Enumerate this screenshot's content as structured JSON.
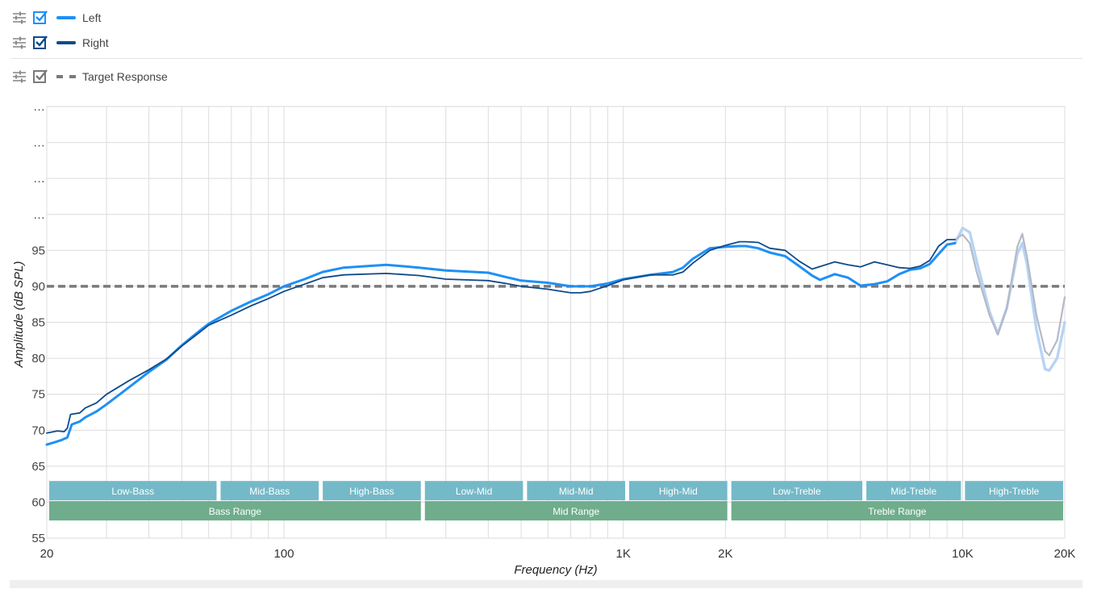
{
  "legend": {
    "items": [
      {
        "label": "Left",
        "color": "#1e90f5",
        "checkbox_color": "#1e90f5",
        "style": "solid"
      },
      {
        "label": "Right",
        "color": "#0f4a8a",
        "checkbox_color": "#0f4a8a",
        "style": "solid"
      },
      {
        "label": "Target Response",
        "color": "#7a7a7a",
        "checkbox_color": "#7a7a7a",
        "style": "dashed"
      }
    ],
    "icons": {
      "adjust": "sliders-icon",
      "check": "checkbox-checked-icon"
    }
  },
  "chart_data": {
    "type": "line",
    "xlabel": "Frequency (Hz)",
    "ylabel": "Amplitude (dB SPL)",
    "x_scale": "log",
    "xlim": [
      20,
      20000
    ],
    "ylim": [
      55,
      115
    ],
    "x_ticks": [
      {
        "value": 20,
        "label": "20"
      },
      {
        "value": 100,
        "label": "100"
      },
      {
        "value": 1000,
        "label": "1K"
      },
      {
        "value": 2000,
        "label": "2K"
      },
      {
        "value": 10000,
        "label": "10K"
      },
      {
        "value": 20000,
        "label": "20K"
      }
    ],
    "x_gridlines": [
      20,
      30,
      40,
      50,
      60,
      70,
      80,
      90,
      100,
      200,
      300,
      400,
      500,
      600,
      700,
      800,
      900,
      1000,
      2000,
      3000,
      4000,
      5000,
      6000,
      7000,
      8000,
      9000,
      10000,
      20000
    ],
    "y_ticks": [
      {
        "value": 55,
        "label": "55"
      },
      {
        "value": 60,
        "label": "60"
      },
      {
        "value": 65,
        "label": "65"
      },
      {
        "value": 70,
        "label": "70"
      },
      {
        "value": 75,
        "label": "75"
      },
      {
        "value": 80,
        "label": "80"
      },
      {
        "value": 85,
        "label": "85"
      },
      {
        "value": 90,
        "label": "90"
      },
      {
        "value": 95,
        "label": "95"
      },
      {
        "value": 100,
        "label": "…"
      },
      {
        "value": 105,
        "label": "…"
      },
      {
        "value": 110,
        "label": "…"
      },
      {
        "value": 115,
        "label": "…"
      }
    ],
    "grid": true,
    "target": {
      "name": "Target Response",
      "value": 90
    },
    "series": [
      {
        "name": "Left",
        "color": "#1e90f5",
        "faded_color": "#b7d4f4",
        "fade_from": 9500,
        "width": 3,
        "points": [
          [
            20,
            68
          ],
          [
            21,
            68.3
          ],
          [
            22,
            68.6
          ],
          [
            23,
            69
          ],
          [
            23.7,
            70.8
          ],
          [
            25,
            71.2
          ],
          [
            26,
            71.8
          ],
          [
            28,
            72.6
          ],
          [
            30,
            73.6
          ],
          [
            35,
            76
          ],
          [
            40,
            78.1
          ],
          [
            45,
            79.8
          ],
          [
            50,
            81.8
          ],
          [
            55,
            83.4
          ],
          [
            60,
            84.8
          ],
          [
            70,
            86.6
          ],
          [
            80,
            87.9
          ],
          [
            90,
            88.9
          ],
          [
            100,
            90
          ],
          [
            115,
            91
          ],
          [
            130,
            92
          ],
          [
            150,
            92.6
          ],
          [
            200,
            93
          ],
          [
            250,
            92.6
          ],
          [
            300,
            92.2
          ],
          [
            400,
            91.9
          ],
          [
            450,
            91.3
          ],
          [
            500,
            90.8
          ],
          [
            600,
            90.5
          ],
          [
            700,
            90
          ],
          [
            800,
            90
          ],
          [
            900,
            90.4
          ],
          [
            1000,
            91
          ],
          [
            1200,
            91.6
          ],
          [
            1400,
            92
          ],
          [
            1500,
            92.6
          ],
          [
            1600,
            93.8
          ],
          [
            1800,
            95.3
          ],
          [
            2000,
            95.5
          ],
          [
            2200,
            95.6
          ],
          [
            2300,
            95.6
          ],
          [
            2500,
            95.3
          ],
          [
            2700,
            94.7
          ],
          [
            3000,
            94.2
          ],
          [
            3300,
            92.8
          ],
          [
            3600,
            91.5
          ],
          [
            3800,
            90.9
          ],
          [
            4200,
            91.7
          ],
          [
            4600,
            91.2
          ],
          [
            5000,
            90.1
          ],
          [
            5500,
            90.3
          ],
          [
            6000,
            90.7
          ],
          [
            6500,
            91.7
          ],
          [
            7000,
            92.3
          ],
          [
            7500,
            92.5
          ],
          [
            8000,
            93.1
          ],
          [
            8500,
            94.5
          ],
          [
            9000,
            95.8
          ],
          [
            9500,
            96
          ],
          [
            10000,
            98.1
          ],
          [
            10500,
            97.5
          ],
          [
            11000,
            93.5
          ],
          [
            12000,
            86.5
          ],
          [
            12700,
            83.4
          ],
          [
            13500,
            87
          ],
          [
            14500,
            94.5
          ],
          [
            15000,
            96
          ],
          [
            15500,
            93
          ],
          [
            16500,
            84
          ],
          [
            17500,
            78.5
          ],
          [
            18000,
            78.3
          ],
          [
            19000,
            80
          ],
          [
            20000,
            85
          ]
        ]
      },
      {
        "name": "Right",
        "color": "#0f4a8a",
        "faded_color": "#b5b9c7",
        "fade_from": 9500,
        "width": 1.8,
        "points": [
          [
            20,
            69.6
          ],
          [
            21.5,
            69.9
          ],
          [
            22.5,
            69.8
          ],
          [
            23,
            70.3
          ],
          [
            23.5,
            72.2
          ],
          [
            25,
            72.4
          ],
          [
            26,
            73.1
          ],
          [
            28,
            73.8
          ],
          [
            30,
            75
          ],
          [
            35,
            76.9
          ],
          [
            40,
            78.4
          ],
          [
            45,
            79.9
          ],
          [
            50,
            81.7
          ],
          [
            55,
            83.2
          ],
          [
            60,
            84.6
          ],
          [
            70,
            86
          ],
          [
            80,
            87.3
          ],
          [
            90,
            88.3
          ],
          [
            100,
            89.3
          ],
          [
            115,
            90.3
          ],
          [
            130,
            91.2
          ],
          [
            150,
            91.6
          ],
          [
            200,
            91.8
          ],
          [
            250,
            91.5
          ],
          [
            300,
            91
          ],
          [
            400,
            90.8
          ],
          [
            450,
            90.4
          ],
          [
            500,
            90
          ],
          [
            600,
            89.6
          ],
          [
            700,
            89.1
          ],
          [
            750,
            89.1
          ],
          [
            800,
            89.3
          ],
          [
            900,
            90.1
          ],
          [
            1000,
            90.9
          ],
          [
            1200,
            91.6
          ],
          [
            1400,
            91.6
          ],
          [
            1500,
            92
          ],
          [
            1600,
            93.2
          ],
          [
            1800,
            95
          ],
          [
            2000,
            95.7
          ],
          [
            2200,
            96.2
          ],
          [
            2300,
            96.2
          ],
          [
            2500,
            96.1
          ],
          [
            2700,
            95.3
          ],
          [
            3000,
            95
          ],
          [
            3300,
            93.5
          ],
          [
            3600,
            92.4
          ],
          [
            4200,
            93.4
          ],
          [
            4600,
            93
          ],
          [
            5000,
            92.7
          ],
          [
            5500,
            93.4
          ],
          [
            6000,
            93
          ],
          [
            6500,
            92.6
          ],
          [
            7000,
            92.5
          ],
          [
            7500,
            92.8
          ],
          [
            8000,
            93.6
          ],
          [
            8500,
            95.6
          ],
          [
            9000,
            96.5
          ],
          [
            9500,
            96.5
          ],
          [
            10000,
            97.2
          ],
          [
            10500,
            96
          ],
          [
            11000,
            92
          ],
          [
            12000,
            86
          ],
          [
            12700,
            83.3
          ],
          [
            13500,
            87
          ],
          [
            14500,
            95.5
          ],
          [
            15000,
            97.3
          ],
          [
            15500,
            94
          ],
          [
            16500,
            86
          ],
          [
            17500,
            81
          ],
          [
            18000,
            80.4
          ],
          [
            19000,
            82.5
          ],
          [
            20000,
            88.5
          ]
        ]
      }
    ],
    "bands": [
      {
        "label": "Low-Bass",
        "from": 20,
        "to": 64,
        "row": 1
      },
      {
        "label": "Mid-Bass",
        "from": 64,
        "to": 128,
        "row": 1
      },
      {
        "label": "High-Bass",
        "from": 128,
        "to": 256,
        "row": 1
      },
      {
        "label": "Low-Mid",
        "from": 256,
        "to": 512,
        "row": 1
      },
      {
        "label": "Mid-Mid",
        "from": 512,
        "to": 1024,
        "row": 1
      },
      {
        "label": "High-Mid",
        "from": 1024,
        "to": 2048,
        "row": 1
      },
      {
        "label": "Low-Treble",
        "from": 2048,
        "to": 5120,
        "row": 1
      },
      {
        "label": "Mid-Treble",
        "from": 5120,
        "to": 10000,
        "row": 1
      },
      {
        "label": "High-Treble",
        "from": 10000,
        "to": 20000,
        "row": 1
      },
      {
        "label": "Bass Range",
        "from": 20,
        "to": 256,
        "row": 2
      },
      {
        "label": "Mid Range",
        "from": 256,
        "to": 2048,
        "row": 2
      },
      {
        "label": "Treble Range",
        "from": 2048,
        "to": 20000,
        "row": 2
      }
    ],
    "band_colors": {
      "row1": "#74b9c8",
      "row2": "#6fad8c"
    }
  }
}
